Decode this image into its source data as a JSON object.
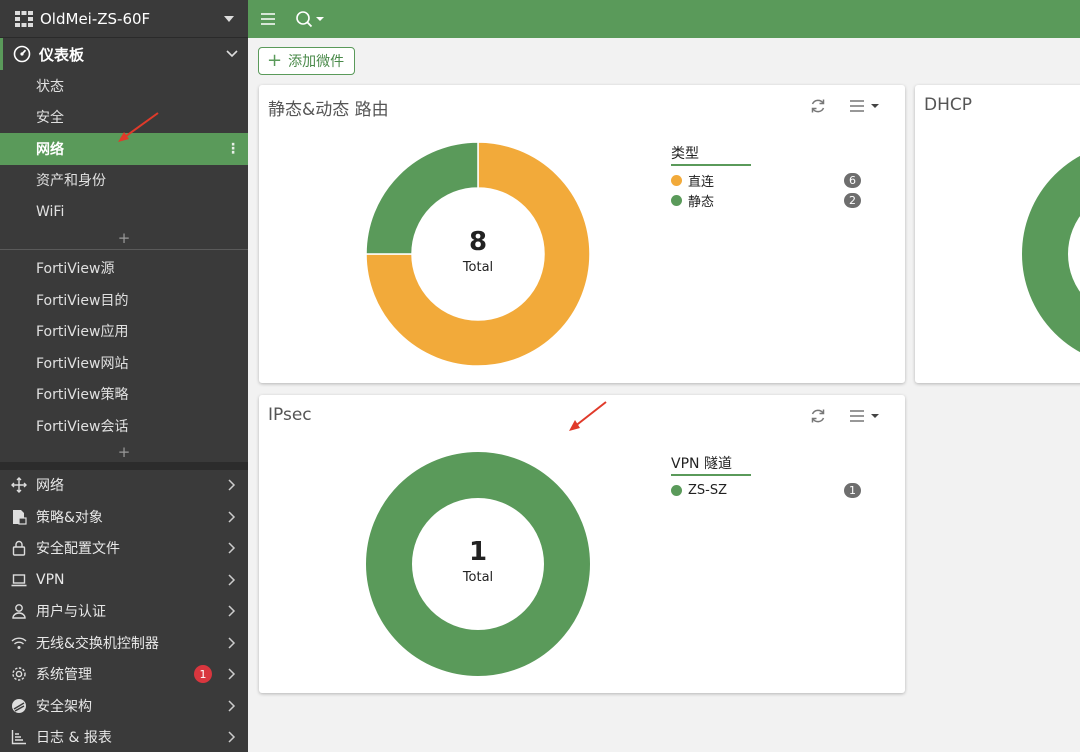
{
  "device": {
    "name": "OldMei-ZS-60F"
  },
  "sidebar": {
    "dashboard": {
      "label": "仪表板",
      "items": [
        "状态",
        "安全",
        "网络",
        "资产和身份",
        "WiFi"
      ],
      "active_index": 2
    },
    "fortiview": [
      "FortiView源",
      "FortiView目的",
      "FortiView应用",
      "FortiView网站",
      "FortiView策略",
      "FortiView会话"
    ],
    "main": [
      {
        "label": "网络",
        "icon": "move-icon"
      },
      {
        "label": "策略&对象",
        "icon": "policy-icon"
      },
      {
        "label": "安全配置文件",
        "icon": "lock-icon"
      },
      {
        "label": "VPN",
        "icon": "laptop-icon"
      },
      {
        "label": "用户与认证",
        "icon": "user-icon"
      },
      {
        "label": "无线&交换机控制器",
        "icon": "wifi-icon"
      },
      {
        "label": "系统管理",
        "icon": "gear-icon",
        "badge": "1"
      },
      {
        "label": "安全架构",
        "icon": "fabric-icon"
      },
      {
        "label": "日志 & 报表",
        "icon": "chart-icon"
      }
    ]
  },
  "toolbar": {
    "add_widget": "添加微件"
  },
  "widgets": {
    "routing": {
      "title": "静态&动态 路由",
      "total": "8",
      "total_label": "Total",
      "legend_title": "类型",
      "legend": [
        {
          "label": "直连",
          "count": "6",
          "color": "#f2aa3a"
        },
        {
          "label": "静态",
          "count": "2",
          "color": "#5a9a5a"
        }
      ]
    },
    "dhcp": {
      "title": "DHCP"
    },
    "ipsec": {
      "title": "IPsec",
      "total": "1",
      "total_label": "Total",
      "legend_title": "VPN 隧道",
      "legend": [
        {
          "label": "ZS-SZ",
          "count": "1",
          "color": "#5a9a5a"
        }
      ]
    }
  },
  "colors": {
    "accent": "#5a9a5a",
    "orange": "#f2aa3a",
    "sidebar": "#3a3a3a",
    "annotation": "#e03a2a"
  }
}
